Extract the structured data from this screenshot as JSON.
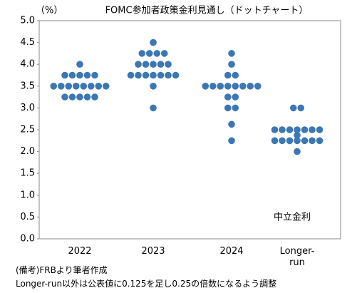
{
  "chart_data": {
    "type": "dot",
    "title": "FOMC参加者政策金利見通し（ドットチャート）",
    "y_label": "（%）",
    "annotation": "中立金利",
    "notes": [
      "(備考)FRBより筆者作成",
      "Longer-run以外は公表値に0.125を足し0.25の倍数になるよう調整"
    ],
    "categories": [
      "2022",
      "2023",
      "2024",
      "Longer-run"
    ],
    "color": "#3b78b3",
    "values": [
      [
        4,
        3.75,
        3.75,
        3.75,
        3.75,
        3.75,
        3.5,
        3.5,
        3.5,
        3.5,
        3.5,
        3.5,
        3.5,
        3.5,
        3.25,
        3.25,
        3.25,
        3.25,
        3.25
      ],
      [
        4.5,
        4.25,
        4.25,
        4.25,
        4.25,
        4,
        4,
        4,
        4,
        4,
        3.75,
        3.75,
        3.75,
        3.75,
        3.75,
        3.75,
        3.75,
        3.5,
        3
      ],
      [
        4.25,
        4,
        3.75,
        3.75,
        3.5,
        3.5,
        3.5,
        3.5,
        3.5,
        3.5,
        3.5,
        3.5,
        3.25,
        3.25,
        3,
        3,
        2.625,
        2.25
      ],
      [
        3,
        3,
        2.5,
        2.5,
        2.5,
        2.5,
        2.5,
        2.5,
        2.5,
        2.375,
        2.25,
        2.25,
        2.25,
        2.25,
        2.25,
        2.25,
        2.25,
        2
      ]
    ],
    "ylim": [
      0,
      5
    ],
    "yticks": [
      {
        "value": 0,
        "label": "0.0"
      },
      0.5,
      {
        "value": 1,
        "label": "1.0"
      },
      1.5,
      {
        "value": 2,
        "label": "2.0"
      },
      2.5,
      {
        "value": 3,
        "label": "3.0"
      },
      3.5,
      {
        "value": 4,
        "label": "4.0"
      },
      4.5,
      {
        "value": 5,
        "label": "5.0"
      }
    ]
  }
}
